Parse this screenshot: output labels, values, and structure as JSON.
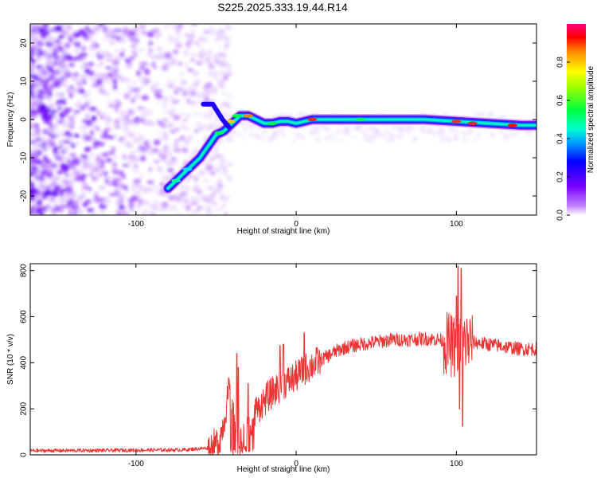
{
  "title": "S225.2025.333.19.44.R14",
  "chart_data": [
    {
      "type": "heatmap",
      "name": "spectrogram",
      "xlabel": "Height of straight line (km)",
      "ylabel": "Frequency (Hz)",
      "xlim": [
        -166,
        150
      ],
      "ylim": [
        -25,
        25
      ],
      "xticks": [
        -100,
        0,
        100
      ],
      "yticks": [
        -20,
        -10,
        0,
        10,
        20
      ],
      "xtick_labels": [
        "-100",
        "0",
        "100"
      ],
      "ytick_labels": [
        "-20",
        "-10",
        "0",
        "10",
        "20"
      ],
      "ridge": {
        "x": [
          -80,
          -75,
          -70,
          -65,
          -60,
          -55,
          -50,
          -45,
          -40,
          -35,
          -30,
          -25,
          -20,
          -15,
          -10,
          -5,
          0,
          10,
          20,
          40,
          60,
          80,
          100,
          120,
          140,
          150
        ],
        "y": [
          -18,
          -16,
          -14,
          -12,
          -10,
          -7,
          -4,
          -3,
          -1,
          1,
          1,
          0,
          -1,
          -1,
          -0.5,
          -0.5,
          -1,
          0,
          0,
          0,
          0,
          0,
          -0.5,
          -1,
          -1.5,
          -1.5
        ]
      },
      "colorbar": {
        "label": "Normalized spectral amplitude",
        "range": [
          0,
          1
        ],
        "ticks": [
          0,
          0.2,
          0.4,
          0.6,
          0.8
        ],
        "tick_labels": [
          "0.0",
          "0.2",
          "0.4",
          "0.6",
          "0.8"
        ]
      }
    },
    {
      "type": "line",
      "name": "snr",
      "xlabel": "Height of straight line (km)",
      "ylabel": "SNR (10 * v/v)",
      "xlim": [
        -166,
        150
      ],
      "ylim": [
        0,
        830
      ],
      "xticks": [
        -100,
        0,
        100
      ],
      "yticks": [
        0,
        200,
        400,
        600,
        800
      ],
      "xtick_labels": [
        "-100",
        "0",
        "100"
      ],
      "ytick_labels": [
        "0",
        "200",
        "400",
        "600",
        "800"
      ],
      "color": "#ee3333",
      "envelope": {
        "x": [
          -166,
          -110,
          -70,
          -55,
          -48,
          -45,
          -42,
          -40,
          -38,
          -35,
          -32,
          -28,
          -25,
          -22,
          -18,
          -15,
          -10,
          -5,
          0,
          5,
          10,
          15,
          20,
          25,
          30,
          40,
          50,
          60,
          70,
          80,
          90,
          95,
          98,
          100,
          102,
          104,
          106,
          110,
          120,
          130,
          140,
          150
        ],
        "y": [
          18,
          20,
          22,
          30,
          60,
          150,
          280,
          200,
          120,
          60,
          90,
          150,
          190,
          220,
          250,
          270,
          300,
          320,
          340,
          370,
          390,
          410,
          430,
          450,
          465,
          480,
          490,
          500,
          500,
          505,
          500,
          480,
          470,
          460,
          470,
          480,
          490,
          490,
          480,
          470,
          460,
          460
        ]
      },
      "spikes": [
        {
          "x": -37,
          "y": 440
        },
        {
          "x": -36,
          "y": 380
        },
        {
          "x": -30,
          "y": 310
        },
        {
          "x": -25,
          "y": 250
        },
        {
          "x": -20,
          "y": 250
        },
        {
          "x": -10,
          "y": 475
        },
        {
          "x": -8,
          "y": 480
        },
        {
          "x": 5,
          "y": 530
        },
        {
          "x": 101,
          "y": 820
        },
        {
          "x": 103,
          "y": 810
        },
        {
          "x": 104,
          "y": 125
        },
        {
          "x": 100,
          "y": 690
        },
        {
          "x": 102,
          "y": 200
        }
      ]
    }
  ]
}
